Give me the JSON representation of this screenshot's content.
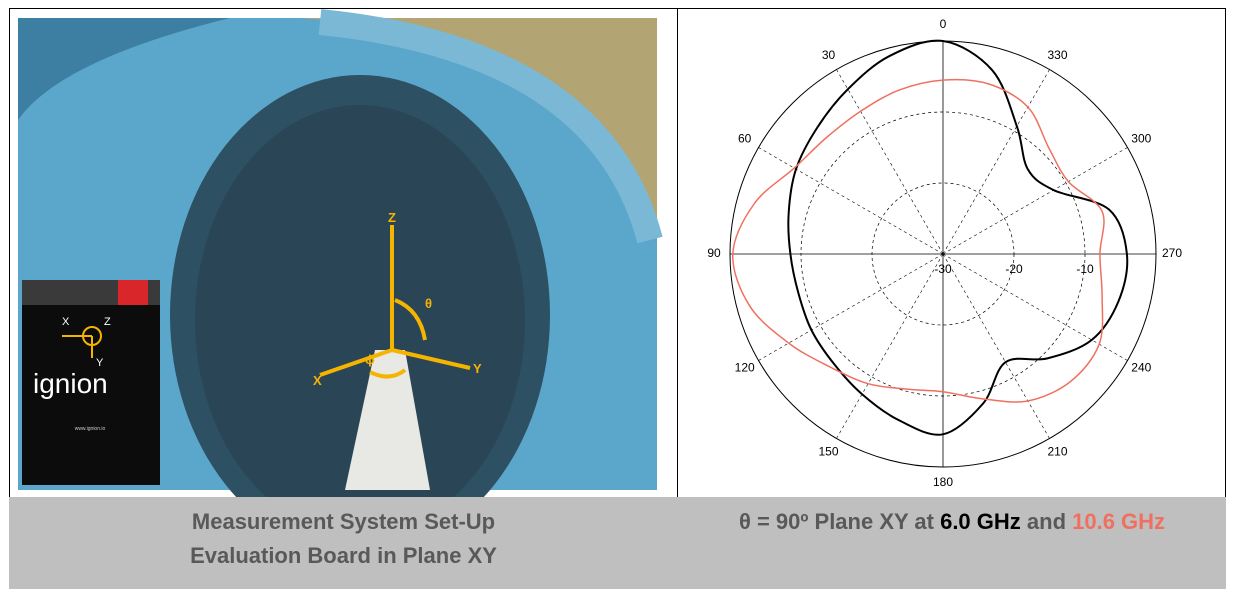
{
  "photo": {
    "axis_labels": [
      "Z",
      "θ",
      "X",
      "ϕ",
      "Y"
    ],
    "logo": {
      "brand": "ignion",
      "axes": [
        "X",
        "Z",
        "Y"
      ],
      "url": "www.ignion.io"
    }
  },
  "chart_data": {
    "type": "polar",
    "angles": [
      0,
      15,
      30,
      45,
      60,
      75,
      90,
      105,
      120,
      135,
      150,
      165,
      180,
      195,
      210,
      225,
      240,
      255,
      270,
      285,
      300,
      315,
      330,
      345
    ],
    "series": [
      {
        "name": "6.0 GHz",
        "color": "#000000",
        "values": [
          0,
          -1.1,
          -3.2,
          -4.9,
          -6.1,
          -7.5,
          -8.5,
          -8.9,
          -8.6,
          -8.2,
          -7.2,
          -5.8,
          -4.6,
          -8.2,
          -12.4,
          -9.2,
          -5.8,
          -4.4,
          -4.1,
          -5.8,
          -12.0,
          -13.1,
          -9.2,
          -3.2
        ]
      },
      {
        "name": "10.6 GHz",
        "color": "#f07060",
        "values": [
          -5.5,
          -6.1,
          -6.8,
          -6.8,
          -5.8,
          -2.5,
          -0.4,
          -1.8,
          -4.9,
          -7.5,
          -8.9,
          -10.3,
          -10.6,
          -8.9,
          -6.1,
          -4.6,
          -4.6,
          -6.8,
          -7.9,
          -6.8,
          -9.6,
          -8.9,
          -6.1,
          -5.2
        ]
      }
    ],
    "rlim": [
      -30,
      0
    ],
    "rticks": [
      -30,
      -20,
      -10
    ],
    "angle_ticks": [
      0,
      30,
      60,
      90,
      120,
      150,
      180,
      210,
      240,
      270,
      300,
      330
    ]
  },
  "captions": {
    "left": [
      "Measurement System Set-Up",
      "Evaluation Board in Plane XY"
    ],
    "right": {
      "prefix": "θ = 90º Plane XY at ",
      "middle": " and "
    }
  }
}
